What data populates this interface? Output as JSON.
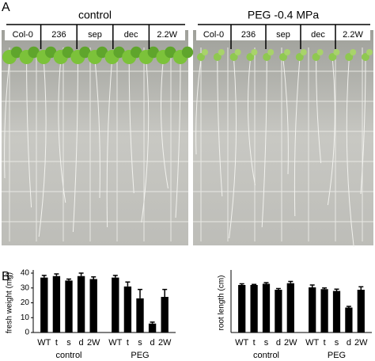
{
  "panel_a": {
    "label": "A",
    "plates": [
      {
        "title": "control",
        "columns": [
          "Col-0",
          "236",
          "sep",
          "dec",
          "2.2W"
        ]
      },
      {
        "title": "PEG -0.4 MPa",
        "columns": [
          "Col-0",
          "236",
          "sep",
          "dec",
          "2.2W"
        ]
      }
    ]
  },
  "panel_b": {
    "label": "B"
  },
  "chart_data": [
    {
      "type": "bar",
      "y_label": "fresh weight (mg)",
      "categories": [
        "WT",
        "t",
        "s",
        "d",
        "2W"
      ],
      "ylim": [
        0,
        40
      ],
      "yticks": [
        0,
        10,
        20,
        30,
        40
      ],
      "color": "#000000",
      "series": [
        {
          "name": "control",
          "values": [
            37,
            38,
            35,
            38,
            36
          ],
          "errors": [
            1.5,
            1.5,
            1,
            2,
            1.5
          ]
        },
        {
          "name": "PEG",
          "values": [
            37,
            31,
            23,
            6,
            24
          ],
          "errors": [
            1.5,
            3,
            6,
            1,
            5
          ]
        }
      ]
    },
    {
      "type": "bar",
      "y_label": "root length (cm)",
      "categories": [
        "WT",
        "t",
        "s",
        "d",
        "2W"
      ],
      "ylim": [
        0,
        10
      ],
      "color": "#000000",
      "series": [
        {
          "name": "control",
          "values": [
            8,
            8,
            8.2,
            7.2,
            8.3
          ],
          "errors": [
            0.2,
            0.1,
            0.2,
            0.2,
            0.3
          ]
        },
        {
          "name": "PEG",
          "values": [
            7.6,
            7.3,
            7,
            4.2,
            7.2
          ],
          "errors": [
            0.4,
            0.2,
            0.3,
            0.2,
            0.5
          ]
        }
      ]
    }
  ]
}
